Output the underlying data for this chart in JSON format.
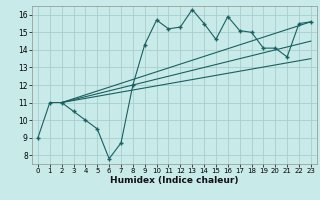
{
  "xlabel": "Humidex (Indice chaleur)",
  "bg_color": "#c8eae8",
  "grid_color": "#a8cece",
  "line_color": "#1a6060",
  "xlim": [
    -0.5,
    23.5
  ],
  "ylim": [
    7.5,
    16.5
  ],
  "xticks": [
    0,
    1,
    2,
    3,
    4,
    5,
    6,
    7,
    8,
    9,
    10,
    11,
    12,
    13,
    14,
    15,
    16,
    17,
    18,
    19,
    20,
    21,
    22,
    23
  ],
  "yticks": [
    8,
    9,
    10,
    11,
    12,
    13,
    14,
    15,
    16
  ],
  "line1_x": [
    0,
    1,
    2,
    3,
    4,
    5,
    6,
    7,
    8,
    9,
    10,
    11,
    12,
    13,
    14,
    15,
    16,
    17,
    18,
    19,
    20,
    21,
    22,
    23
  ],
  "line1_y": [
    9.0,
    11.0,
    11.0,
    10.5,
    10.0,
    9.5,
    7.8,
    8.7,
    12.0,
    14.3,
    15.7,
    15.2,
    15.3,
    16.3,
    15.5,
    14.6,
    15.9,
    15.1,
    15.0,
    14.1,
    14.1,
    13.6,
    15.5,
    15.6
  ],
  "trend1_x": [
    2,
    23
  ],
  "trend1_y": [
    11.0,
    15.6
  ],
  "trend2_x": [
    2,
    23
  ],
  "trend2_y": [
    11.0,
    14.5
  ],
  "trend3_x": [
    2,
    23
  ],
  "trend3_y": [
    11.0,
    13.5
  ],
  "marker_x": [
    0,
    1,
    2,
    3,
    4,
    5,
    6,
    7,
    8,
    9,
    10,
    11,
    12,
    13,
    14,
    15,
    16,
    17,
    18,
    19,
    20,
    21,
    22,
    23
  ],
  "marker_y": [
    9.0,
    11.0,
    11.0,
    10.5,
    10.0,
    9.5,
    7.8,
    8.7,
    12.0,
    14.3,
    15.7,
    15.2,
    15.3,
    16.3,
    15.5,
    14.6,
    15.9,
    15.1,
    15.0,
    14.1,
    14.1,
    13.6,
    15.5,
    15.6
  ]
}
